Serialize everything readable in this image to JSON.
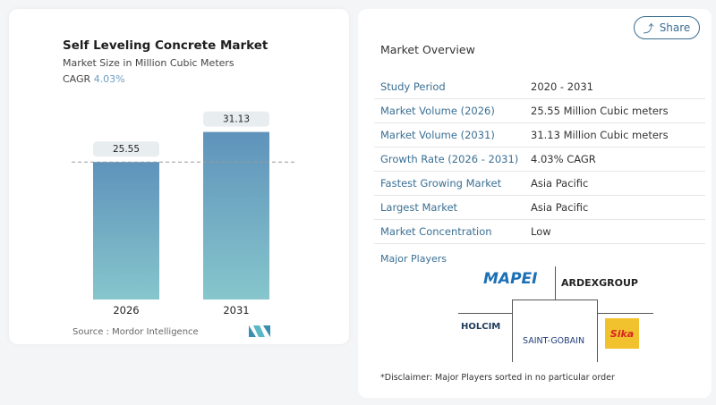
{
  "chart_data": {
    "type": "bar",
    "title": "Self Leveling Concrete Market",
    "subtitle": "Market Size in Million Cubic Meters",
    "cagr_label": "CAGR",
    "cagr_value": "4.03%",
    "categories": [
      "2026",
      "2031"
    ],
    "values": [
      25.55,
      31.13
    ],
    "data_labels": [
      "25.55",
      "31.13"
    ],
    "colors": {
      "top": "#5f93bb",
      "bottom": "#86c6cc"
    },
    "reference_line": 25.55,
    "grid": false
  },
  "source": "Source :  Mordor Intelligence",
  "share_label": "Share",
  "overview": {
    "title": "Market Overview",
    "rows": [
      {
        "label": "Study Period",
        "value": "2020 - 2031"
      },
      {
        "label": "Market Volume (2026)",
        "value": "25.55 Million Cubic meters"
      },
      {
        "label": "Market Volume (2031)",
        "value": "31.13 Million Cubic meters"
      },
      {
        "label": "Growth Rate (2026 - 2031)",
        "value": "4.03% CAGR"
      },
      {
        "label": "Fastest Growing Market",
        "value": "Asia Pacific"
      },
      {
        "label": "Largest Market",
        "value": "Asia Pacific"
      },
      {
        "label": "Market Concentration",
        "value": "Low"
      }
    ]
  },
  "major_players": {
    "title": "Major Players",
    "logos": [
      "MAPEI",
      "ARDEXGROUP",
      "HOLCIM",
      "SAINT-GOBAIN",
      "Sika"
    ]
  },
  "disclaimer": "*Disclaimer: Major Players sorted in no particular order"
}
